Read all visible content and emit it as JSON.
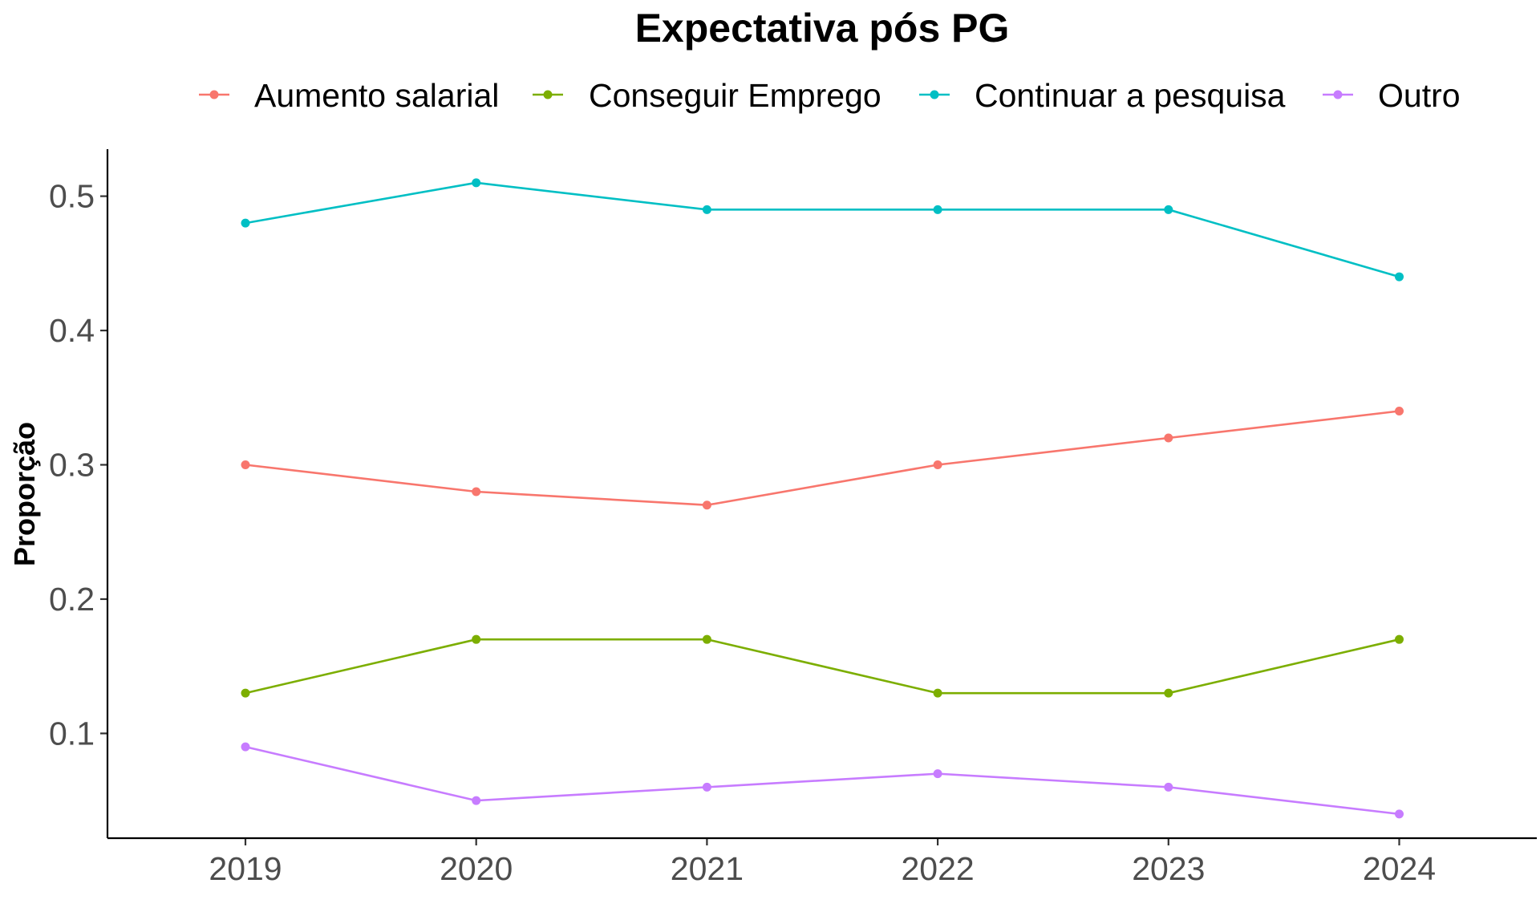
{
  "chart_data": {
    "type": "line",
    "title": "Expectativa pós PG",
    "xlabel": "",
    "ylabel": "Proporção",
    "x": [
      "2019",
      "2020",
      "2021",
      "2022",
      "2023",
      "2024"
    ],
    "yticks": [
      "0.1",
      "0.2",
      "0.3",
      "0.4",
      "0.5"
    ],
    "ylim": [
      0.022,
      0.535
    ],
    "grid": false,
    "legend_position": "top",
    "series": [
      {
        "name": "Aumento salarial",
        "color": "#F8766D",
        "values": [
          0.3,
          0.28,
          0.27,
          0.3,
          0.32,
          0.34
        ]
      },
      {
        "name": "Conseguir Emprego",
        "color": "#7CAE00",
        "values": [
          0.13,
          0.17,
          0.17,
          0.13,
          0.13,
          0.17
        ]
      },
      {
        "name": "Continuar a pesquisa",
        "color": "#00BFC4",
        "values": [
          0.48,
          0.51,
          0.49,
          0.49,
          0.49,
          0.44
        ]
      },
      {
        "name": "Outro",
        "color": "#C77CFF",
        "values": [
          0.09,
          0.05,
          0.06,
          0.07,
          0.06,
          0.04
        ]
      }
    ]
  }
}
